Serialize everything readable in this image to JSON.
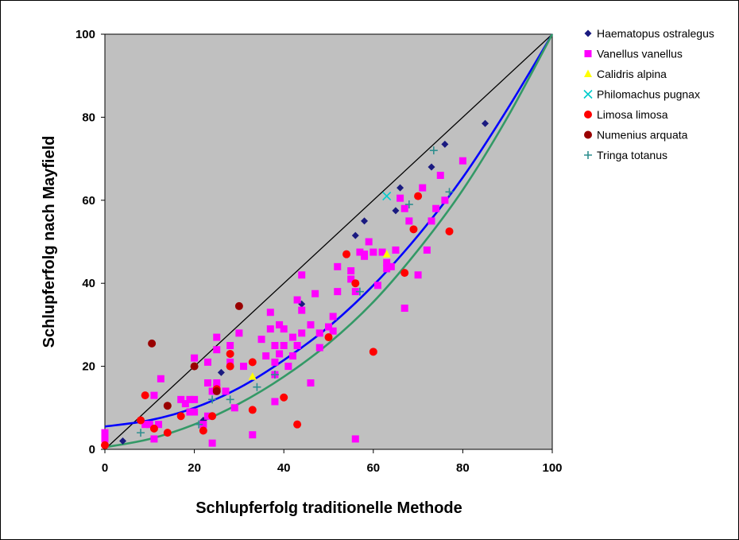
{
  "chart_data": {
    "type": "scatter",
    "xlabel": "Schlupferfolg traditionelle Methode",
    "ylabel": "Schlupferfolg nach Mayfield",
    "xlim": [
      0,
      100
    ],
    "ylim": [
      0,
      100
    ],
    "xticks": [
      "0",
      "20",
      "40",
      "60",
      "80",
      "100"
    ],
    "yticks": [
      "0",
      "20",
      "40",
      "60",
      "80",
      "100"
    ],
    "plot_background": "#c0c0c0",
    "grid": false,
    "legend_position": "right",
    "series": [
      {
        "name": "Haematopus ostralegus",
        "marker": "diamond",
        "color": "#1a1a80",
        "points": [
          [
            4,
            2
          ],
          [
            22,
            7
          ],
          [
            26,
            18.5
          ],
          [
            44,
            35
          ],
          [
            56,
            51.5
          ],
          [
            58,
            55
          ],
          [
            65,
            57.5
          ],
          [
            66,
            63
          ],
          [
            73,
            68
          ],
          [
            76,
            73.5
          ],
          [
            85,
            78.5
          ]
        ]
      },
      {
        "name": "Vanellus vanellus",
        "marker": "square",
        "color": "#ff00ff",
        "points": [
          [
            0,
            4
          ],
          [
            0,
            2.5
          ],
          [
            9,
            6
          ],
          [
            10,
            6
          ],
          [
            11,
            2.5
          ],
          [
            11,
            13
          ],
          [
            12,
            6
          ],
          [
            12.5,
            17
          ],
          [
            17,
            12
          ],
          [
            18,
            11
          ],
          [
            19,
            12
          ],
          [
            19,
            9
          ],
          [
            20,
            9
          ],
          [
            20,
            12
          ],
          [
            20,
            22
          ],
          [
            22,
            6
          ],
          [
            23,
            8
          ],
          [
            23,
            16
          ],
          [
            23,
            21
          ],
          [
            24,
            1.5
          ],
          [
            24,
            14
          ],
          [
            25,
            15
          ],
          [
            25,
            16
          ],
          [
            25,
            24
          ],
          [
            25,
            27
          ],
          [
            27,
            14
          ],
          [
            28,
            21
          ],
          [
            28,
            25
          ],
          [
            29,
            10
          ],
          [
            30,
            28
          ],
          [
            31,
            20
          ],
          [
            33,
            3.5
          ],
          [
            35,
            26.5
          ],
          [
            36,
            22.5
          ],
          [
            37,
            33
          ],
          [
            37,
            29
          ],
          [
            38,
            18
          ],
          [
            38,
            21
          ],
          [
            38,
            25
          ],
          [
            38,
            11.5
          ],
          [
            39,
            30
          ],
          [
            39,
            23
          ],
          [
            40,
            29
          ],
          [
            40,
            25
          ],
          [
            41,
            20
          ],
          [
            42,
            22.5
          ],
          [
            42,
            27
          ],
          [
            43,
            36
          ],
          [
            43,
            25
          ],
          [
            44,
            33.5
          ],
          [
            44,
            28
          ],
          [
            44,
            42
          ],
          [
            46,
            16
          ],
          [
            46,
            30
          ],
          [
            47,
            37.5
          ],
          [
            48,
            24.5
          ],
          [
            48,
            28
          ],
          [
            50,
            29.5
          ],
          [
            51,
            28.5
          ],
          [
            51,
            32
          ],
          [
            52,
            38
          ],
          [
            52,
            44
          ],
          [
            55,
            41
          ],
          [
            55,
            43
          ],
          [
            56,
            38
          ],
          [
            56,
            2.5
          ],
          [
            57,
            47.5
          ],
          [
            58,
            47
          ],
          [
            58,
            46.5
          ],
          [
            59,
            50
          ],
          [
            60,
            47.5
          ],
          [
            61,
            39.5
          ],
          [
            62,
            47.5
          ],
          [
            63,
            45
          ],
          [
            63,
            43.5
          ],
          [
            64,
            44
          ],
          [
            65,
            48
          ],
          [
            66,
            60.5
          ],
          [
            67,
            34
          ],
          [
            67,
            58
          ],
          [
            68,
            55
          ],
          [
            70,
            42
          ],
          [
            71,
            63
          ],
          [
            72,
            48
          ],
          [
            73,
            55
          ],
          [
            74,
            58
          ],
          [
            75,
            66
          ],
          [
            76,
            60
          ],
          [
            80,
            69.5
          ]
        ]
      },
      {
        "name": "Calidris alpina",
        "marker": "triangle",
        "color": "#ffff00",
        "points": [
          [
            33,
            17.5
          ],
          [
            63,
            47
          ]
        ]
      },
      {
        "name": "Philomachus pugnax",
        "marker": "x",
        "color": "#00cccc",
        "points": [
          [
            63,
            61
          ]
        ]
      },
      {
        "name": "Limosa limosa",
        "marker": "circle",
        "color": "#ff0000",
        "points": [
          [
            0,
            1
          ],
          [
            8,
            7
          ],
          [
            9,
            13
          ],
          [
            11,
            5
          ],
          [
            14,
            4
          ],
          [
            17,
            8
          ],
          [
            22,
            4.5
          ],
          [
            24,
            8
          ],
          [
            25,
            14.5
          ],
          [
            28,
            20
          ],
          [
            28,
            23
          ],
          [
            33,
            9.5
          ],
          [
            33,
            21
          ],
          [
            40,
            12.5
          ],
          [
            43,
            6
          ],
          [
            50,
            27
          ],
          [
            54,
            47
          ],
          [
            56,
            40
          ],
          [
            60,
            23.5
          ],
          [
            67,
            42.5
          ],
          [
            69,
            53
          ],
          [
            70,
            61
          ],
          [
            77,
            52.5
          ]
        ]
      },
      {
        "name": "Numenius arquata",
        "marker": "circle",
        "color": "#990000",
        "points": [
          [
            10.5,
            25.5
          ],
          [
            14,
            10.5
          ],
          [
            20,
            20
          ],
          [
            25,
            14
          ],
          [
            30,
            34.5
          ]
        ]
      },
      {
        "name": "Tringa totanus",
        "marker": "plus",
        "color": "#2f8f8f",
        "points": [
          [
            8,
            4
          ],
          [
            21,
            6
          ],
          [
            24,
            12
          ],
          [
            28,
            12
          ],
          [
            34,
            15
          ],
          [
            38,
            18
          ],
          [
            57,
            38
          ],
          [
            68,
            59
          ],
          [
            73.5,
            72
          ],
          [
            77,
            62
          ]
        ]
      }
    ],
    "lines": [
      {
        "kind": "identity",
        "color": "#000000",
        "points": [
          [
            0,
            0
          ],
          [
            100,
            100
          ]
        ]
      },
      {
        "kind": "curve",
        "color": "#0000ff",
        "points": [
          [
            0,
            5.5
          ],
          [
            10,
            7
          ],
          [
            20,
            10
          ],
          [
            30,
            14.8
          ],
          [
            40,
            21.5
          ],
          [
            50,
            29.5
          ],
          [
            60,
            39.5
          ],
          [
            70,
            51.5
          ],
          [
            80,
            65.5
          ],
          [
            90,
            82
          ],
          [
            100,
            100
          ]
        ]
      },
      {
        "kind": "curve",
        "color": "#339966",
        "points": [
          [
            0,
            0.5
          ],
          [
            10,
            2.5
          ],
          [
            20,
            6
          ],
          [
            30,
            11
          ],
          [
            40,
            17.5
          ],
          [
            50,
            25.5
          ],
          [
            60,
            35.5
          ],
          [
            70,
            48
          ],
          [
            80,
            62.5
          ],
          [
            90,
            80
          ],
          [
            100,
            100
          ]
        ]
      }
    ]
  }
}
